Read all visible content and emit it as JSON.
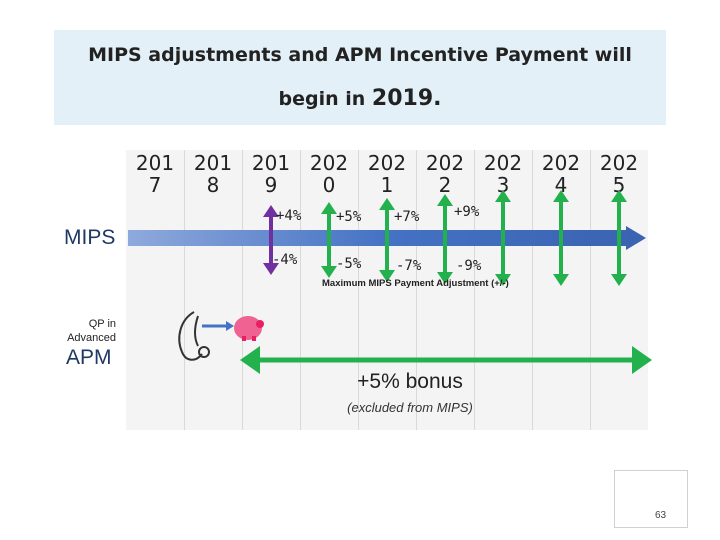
{
  "title": {
    "line1": "MIPS adjustments and APM Incentive Payment will",
    "line2_text": "begin in ",
    "line2_year": "2019."
  },
  "years": [
    {
      "l1": "201",
      "l2": "7"
    },
    {
      "l1": "201",
      "l2": "8"
    },
    {
      "l1": "201",
      "l2": "9"
    },
    {
      "l1": "202",
      "l2": "0"
    },
    {
      "l1": "202",
      "l2": "1"
    },
    {
      "l1": "202",
      "l2": "2"
    },
    {
      "l1": "202",
      "l2": "3"
    },
    {
      "l1": "202",
      "l2": "4"
    },
    {
      "l1": "202",
      "l2": "5"
    }
  ],
  "rows": {
    "mips": "MIPS",
    "qp_line1": "QP in",
    "qp_line2": "Advanced",
    "apm": "APM"
  },
  "adjustments": [
    {
      "year": "2019",
      "plus": "+4%",
      "minus": "-4%"
    },
    {
      "year": "2020",
      "plus": "+5%",
      "minus": "-5%"
    },
    {
      "year": "2021",
      "plus": "+7%",
      "minus": "-7%"
    },
    {
      "year": "2022",
      "plus": "+9%",
      "minus": "-9%"
    }
  ],
  "max_label": "Maximum MIPS Payment Adjustment (+/-)",
  "bonus": {
    "label": "+5% bonus",
    "note": "(excluded from MIPS)"
  },
  "page_number": "63",
  "colors": {
    "title_bg": "#e4f0f7",
    "arrow_blue": "#4472c4",
    "green": "#22b14c",
    "purple": "#7030a0"
  }
}
